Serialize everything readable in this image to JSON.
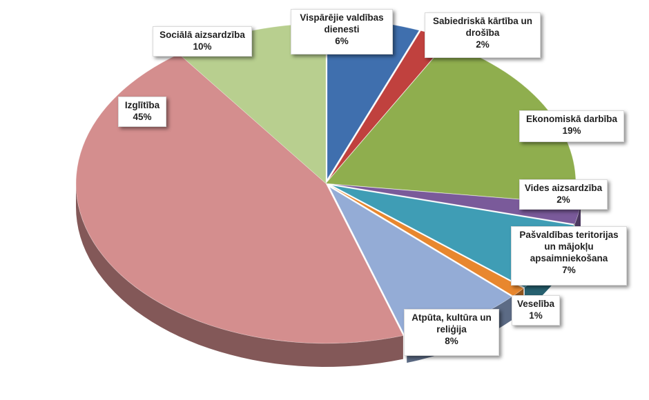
{
  "chart_data": {
    "type": "pie",
    "style": "3d-exploded-wedges",
    "title": "",
    "start_angle_deg": 90,
    "direction": "clockwise",
    "slices": [
      {
        "label": "Vispārējie valdības dienesti",
        "value": 6,
        "display": "6%",
        "color": "#3F6FAE"
      },
      {
        "label": "Sabiedriskā kārtība un drošība",
        "value": 2,
        "display": "2%",
        "color": "#C0413E"
      },
      {
        "label": "Ekonomiskā darbība",
        "value": 19,
        "display": "19%",
        "color": "#8FAE4E"
      },
      {
        "label": "Vides aizsardzība",
        "value": 2,
        "display": "2%",
        "color": "#7A5A9A"
      },
      {
        "label": "Pašvaldības teritorijas un mājokļu apsaimniekošana",
        "value": 7,
        "display": "7%",
        "color": "#3F9DB5"
      },
      {
        "label": "Veselība",
        "value": 1,
        "display": "1%",
        "color": "#E8872E"
      },
      {
        "label": "Atpūta, kultūra un reliģija",
        "value": 8,
        "display": "8%",
        "color": "#94ACD6"
      },
      {
        "label": "Izglītība",
        "value": 45,
        "display": "45%",
        "color": "#D48E8E"
      },
      {
        "label": "Sociālā aizsardzība",
        "value": 10,
        "display": "10%",
        "color": "#B8CF8F"
      }
    ]
  }
}
